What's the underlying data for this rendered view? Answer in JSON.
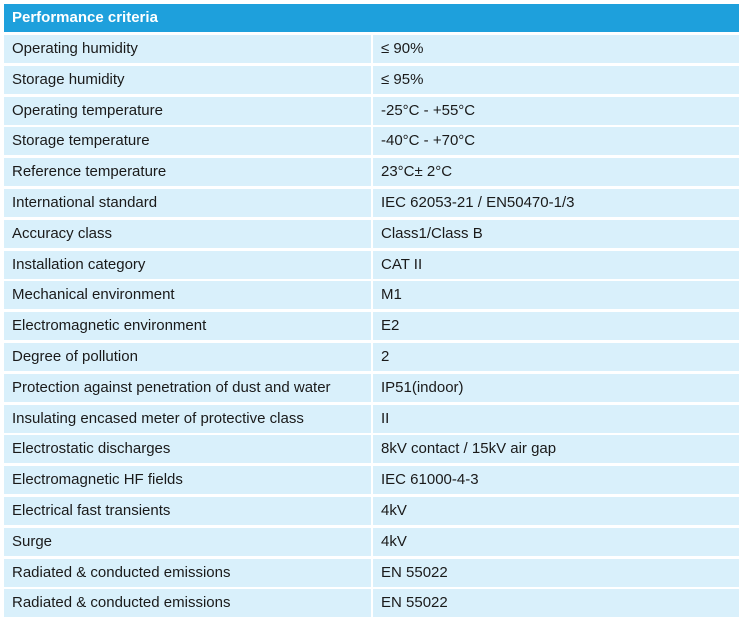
{
  "header": {
    "title": "Performance criteria"
  },
  "rows": [
    {
      "label": "Operating humidity",
      "value": "≤ 90%"
    },
    {
      "label": "Storage humidity",
      "value": "≤ 95%"
    },
    {
      "label": "Operating temperature",
      "value": "-25°C - +55°C"
    },
    {
      "label": "Storage temperature",
      "value": "-40°C - +70°C"
    },
    {
      "label": "Reference temperature",
      "value": "23°C± 2°C"
    },
    {
      "label": "International standard",
      "value": "IEC 62053-21 / EN50470-1/3"
    },
    {
      "label": "Accuracy class",
      "value": "Class1/Class B"
    },
    {
      "label": "Installation category",
      "value": "CAT II"
    },
    {
      "label": "Mechanical environment",
      "value": "M1"
    },
    {
      "label": "Electromagnetic environment",
      "value": "E2"
    },
    {
      "label": "Degree of pollution",
      "value": "2"
    },
    {
      "label": "Protection against penetration of dust and water",
      "value": "IP51(indoor)"
    },
    {
      "label": "Insulating encased meter of protective class",
      "value": "II"
    },
    {
      "label": "Electrostatic discharges",
      "value": "8kV contact / 15kV air gap"
    },
    {
      "label": "Electromagnetic HF fields",
      "value": "IEC 61000-4-3"
    },
    {
      "label": "Electrical fast transients",
      "value": "4kV"
    },
    {
      "label": "Surge",
      "value": "4kV"
    },
    {
      "label": "Radiated & conducted emissions",
      "value": "EN 55022"
    },
    {
      "label": "Radiated & conducted emissions",
      "value": "EN 55022"
    }
  ],
  "colors": {
    "header_bg": "#1ea0dc",
    "header_text": "#ffffff",
    "cell_bg": "#d9f0fb",
    "cell_text": "#1a1a1a"
  }
}
